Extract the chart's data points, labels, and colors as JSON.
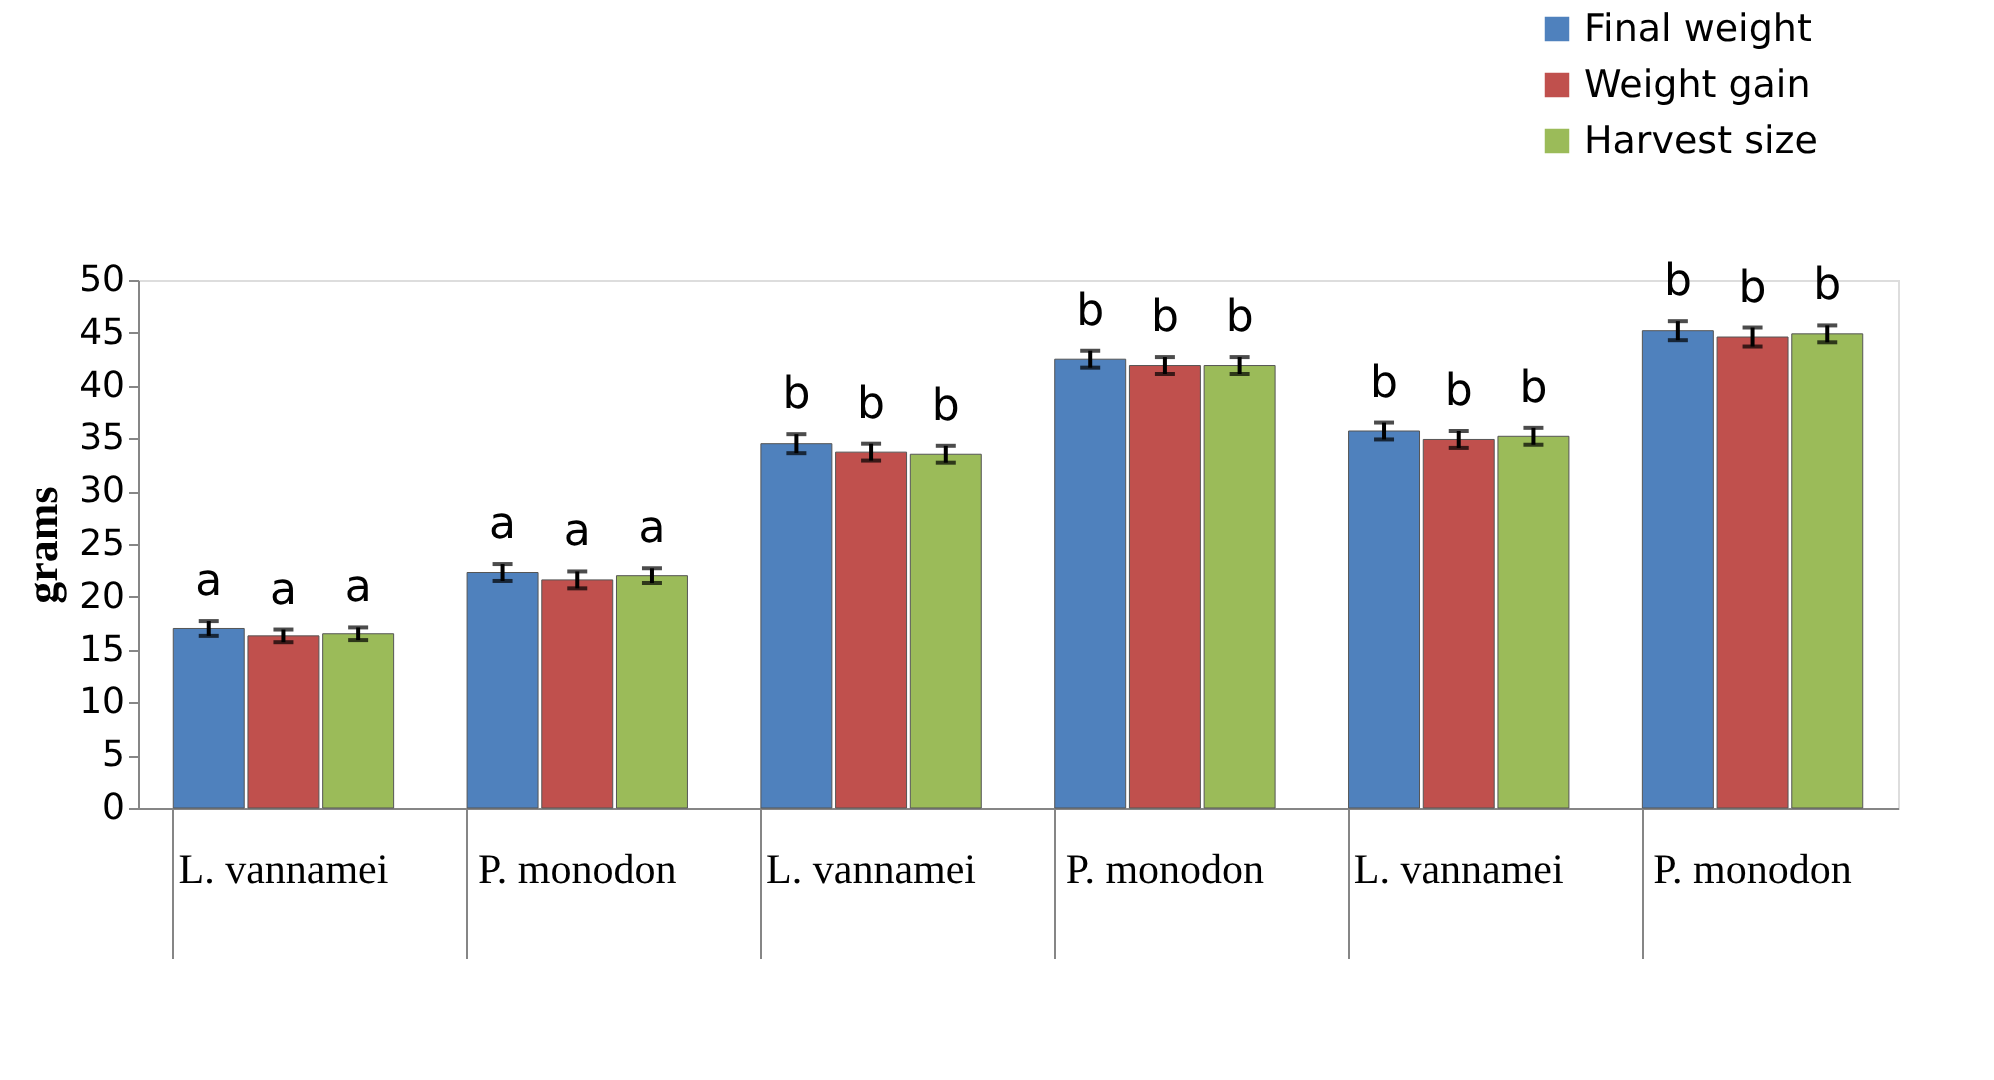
{
  "chart_data": {
    "type": "bar",
    "ylabel": "grams",
    "categories": [
      "L. vannamei",
      "P. monodon",
      "L. vannamei",
      "P. monodon",
      "L. vannamei",
      "P. monodon"
    ],
    "series": [
      {
        "name": "Final weight",
        "color": "#4f81bd",
        "values": [
          17.0,
          22.3,
          34.5,
          42.5,
          35.7,
          45.2
        ],
        "errors": [
          0.7,
          0.8,
          0.9,
          0.8,
          0.8,
          0.9
        ],
        "value_labels": [
          "a",
          "a",
          "b",
          "b",
          "b",
          "b"
        ]
      },
      {
        "name": "Weight gain",
        "color": "#c0504d",
        "values": [
          16.3,
          21.6,
          33.7,
          41.9,
          34.9,
          44.6
        ],
        "errors": [
          0.6,
          0.8,
          0.8,
          0.8,
          0.8,
          0.9
        ],
        "value_labels": [
          "a",
          "a",
          "b",
          "b",
          "b",
          "b"
        ]
      },
      {
        "name": "Harvest size",
        "color": "#9bbb59",
        "values": [
          16.5,
          22.0,
          33.5,
          41.9,
          35.2,
          44.9
        ],
        "errors": [
          0.6,
          0.7,
          0.8,
          0.8,
          0.8,
          0.8
        ],
        "value_labels": [
          "a",
          "a",
          "b",
          "b",
          "b",
          "b"
        ]
      }
    ],
    "ylim": [
      0,
      50
    ],
    "yticks": [
      0,
      5,
      10,
      15,
      20,
      25,
      30,
      35,
      40,
      45,
      50
    ],
    "grid": false,
    "legend": "top right"
  }
}
